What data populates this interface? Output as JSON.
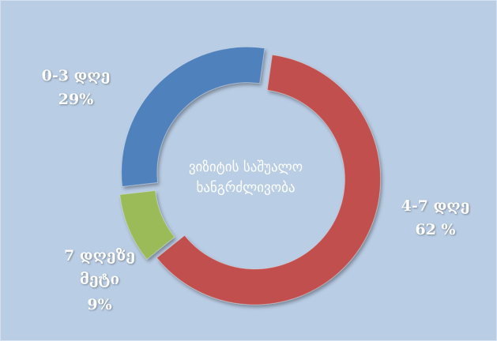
{
  "chart_data": {
    "type": "donut",
    "title": "ვიზიტის საშუალო ხანგრძლივობა",
    "categories": [
      "4-7 დღე",
      "7 დღეზე მეტი",
      "0-3 დღე"
    ],
    "values": [
      62,
      9,
      29
    ],
    "value_labels": [
      "62 %",
      "9%",
      "29%"
    ],
    "colors": [
      "#c0504d",
      "#9bbb59",
      "#4f81bd"
    ]
  }
}
